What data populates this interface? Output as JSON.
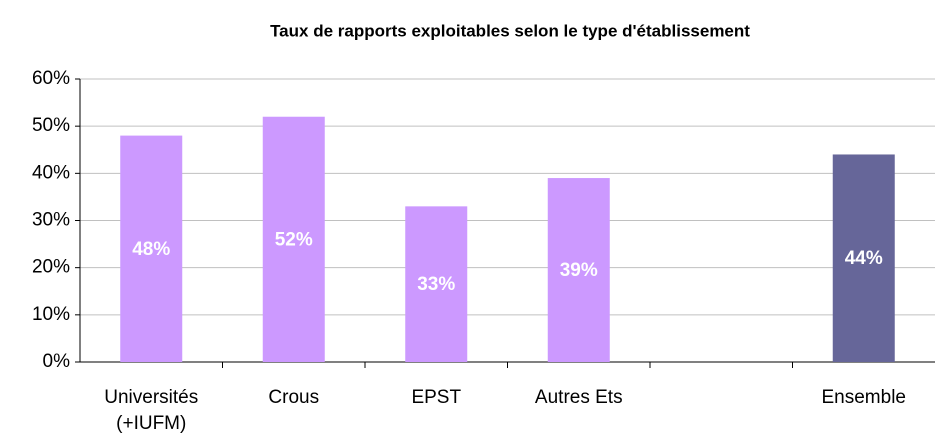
{
  "chart_data": {
    "type": "bar",
    "title": "Taux de rapports exploitables selon le type d'établissement",
    "categories": [
      "Universités\n(+IUFM)",
      "Crous",
      "EPST",
      "Autres Ets",
      null,
      "Ensemble"
    ],
    "values": [
      48,
      52,
      33,
      39,
      null,
      44
    ],
    "value_labels": [
      "48%",
      "52%",
      "33%",
      "39%",
      null,
      "44%"
    ],
    "colors": [
      "#cc99ff",
      "#cc99ff",
      "#cc99ff",
      "#cc99ff",
      null,
      "#666699"
    ],
    "ylim": [
      0,
      60
    ],
    "yticks": [
      {
        "value": 0,
        "label": "0%"
      },
      {
        "value": 10,
        "label": "10%"
      },
      {
        "value": 20,
        "label": "20%"
      },
      {
        "value": 30,
        "label": "30%"
      },
      {
        "value": 40,
        "label": "40%"
      },
      {
        "value": 50,
        "label": "50%"
      },
      {
        "value": 60,
        "label": "60%"
      }
    ],
    "grid": true
  }
}
